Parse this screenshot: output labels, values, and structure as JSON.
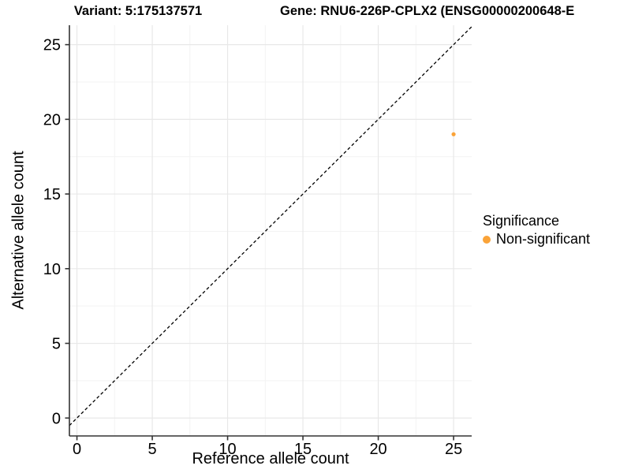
{
  "chart_data": {
    "type": "scatter",
    "titles": {
      "left": "Variant: 5:175137571",
      "right": "Gene: RNU6-226P-CPLX2 (ENSG00000200648-E"
    },
    "xlabel": "Reference allele count",
    "ylabel": "Alternative allele count",
    "x_ticks": [
      0,
      5,
      10,
      15,
      20,
      25
    ],
    "y_ticks": [
      0,
      5,
      10,
      15,
      20,
      25
    ],
    "xlim": [
      -0.5,
      26.2
    ],
    "ylim": [
      -1.2,
      26.3
    ],
    "grid": {
      "major": true,
      "minor": true
    },
    "points": [
      {
        "x": 25,
        "y": 19,
        "significance": "Non-significant"
      }
    ],
    "identity_line": {
      "slope": 1,
      "intercept": 0,
      "style": "dashed",
      "color": "#000000"
    },
    "legend": {
      "title": "Significance",
      "position": "right",
      "items": [
        {
          "label": "Non-significant",
          "color": "#FAA338"
        }
      ]
    },
    "colors": {
      "point": "#FAA338",
      "grid_major": "#E8E8E8",
      "grid_minor": "#F3F3F3",
      "axis": "#333333",
      "dashed_line": "#000000",
      "text": "#000000"
    }
  }
}
